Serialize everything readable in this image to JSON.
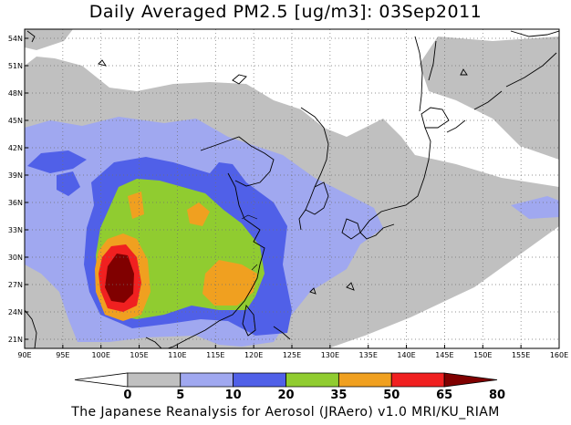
{
  "title": "Daily Averaged PM2.5 [ug/m3]: 03Sep2011",
  "footer": "The Japanese Reanalysis for Aerosol (JRAero) v1.0 MRI/KU_RIAM",
  "map": {
    "lon_range": [
      90,
      160
    ],
    "lat_range": [
      20,
      55
    ],
    "lon_ticks": [
      "90E",
      "95E",
      "100E",
      "105E",
      "110E",
      "115E",
      "120E",
      "125E",
      "130E",
      "135E",
      "140E",
      "145E",
      "150E",
      "155E",
      "160E"
    ],
    "lat_ticks": [
      "54N",
      "51N",
      "48N",
      "45N",
      "42N",
      "39N",
      "36N",
      "33N",
      "30N",
      "27N",
      "24N",
      "21N"
    ],
    "grid": "dotted"
  },
  "colorbar": {
    "levels": [
      "0",
      "5",
      "10",
      "20",
      "35",
      "50",
      "65",
      "80"
    ],
    "colors": [
      "#ffffff",
      "#c0c0c0",
      "#a0a8f0",
      "#5060e8",
      "#90cc30",
      "#f0a020",
      "#f02020",
      "#800000"
    ]
  }
}
